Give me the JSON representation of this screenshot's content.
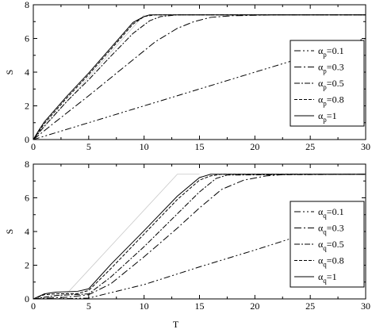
{
  "chart_data": [
    {
      "type": "line",
      "xlabel": "",
      "ylabel": "S",
      "xlim": [
        0,
        30
      ],
      "ylim": [
        0,
        8
      ],
      "xticks": [
        "0",
        "5",
        "10",
        "15",
        "20",
        "25",
        "30"
      ],
      "yticks": [
        "0",
        "2",
        "4",
        "6",
        "8"
      ],
      "grid": false,
      "legend_position": "right",
      "series": [
        {
          "name": "p=0.1",
          "symbol": "α",
          "sub": "p",
          "val": "=0.1",
          "dash": "8,3,2,3,2,3",
          "x": [
            0,
            5,
            10,
            15,
            20,
            25,
            30
          ],
          "y": [
            0,
            1.0,
            2.0,
            3.0,
            4.0,
            5.0,
            6.0
          ]
        },
        {
          "name": "p=0.3",
          "symbol": "α",
          "sub": "p",
          "val": "=0.3",
          "dash": "9,3,2,3",
          "x": [
            0,
            2,
            5,
            8,
            11,
            13,
            14.5,
            16,
            18,
            22,
            30
          ],
          "y": [
            0,
            1.05,
            2.6,
            4.2,
            5.8,
            6.6,
            7.0,
            7.25,
            7.35,
            7.4,
            7.4
          ]
        },
        {
          "name": "p=0.5",
          "symbol": "α",
          "sub": "p",
          "val": "=0.5",
          "dash": "7,2,2,2",
          "x": [
            0,
            1,
            3,
            5,
            7,
            9,
            10.5,
            11.5,
            13,
            30
          ],
          "y": [
            0,
            0.8,
            2.25,
            3.55,
            4.95,
            6.3,
            7.05,
            7.3,
            7.4,
            7.4
          ]
        },
        {
          "name": "p=0.8",
          "symbol": "α",
          "sub": "p",
          "val": "=0.8",
          "dash": "4,2",
          "x": [
            0,
            1,
            3,
            5,
            7,
            9,
            10,
            11,
            30
          ],
          "y": [
            0,
            0.95,
            2.45,
            3.85,
            5.35,
            6.85,
            7.3,
            7.4,
            7.4
          ]
        },
        {
          "name": "p=1",
          "symbol": "α",
          "sub": "p",
          "val": "=1",
          "dash": "",
          "x": [
            0,
            0.5,
            1,
            3,
            5,
            7,
            9,
            10,
            10.5,
            30
          ],
          "y": [
            0,
            0.55,
            1.05,
            2.55,
            3.95,
            5.45,
            6.95,
            7.3,
            7.4,
            7.4
          ]
        }
      ],
      "reference": {
        "x": [
          0,
          10
        ],
        "y": [
          0,
          7.4
        ]
      }
    },
    {
      "type": "line",
      "xlabel": "T",
      "ylabel": "S",
      "xlim": [
        0,
        30
      ],
      "ylim": [
        0,
        8
      ],
      "xticks": [
        "0",
        "5",
        "10",
        "15",
        "20",
        "25",
        "30"
      ],
      "yticks": [
        "0",
        "2",
        "4",
        "6",
        "8"
      ],
      "grid": false,
      "legend_position": "right",
      "series": [
        {
          "name": "q=0.1",
          "symbol": "α",
          "sub": "q",
          "val": "=0.1",
          "dash": "8,3,2,3,2,3",
          "x": [
            0,
            3,
            5,
            10,
            15,
            20,
            25,
            30
          ],
          "y": [
            0,
            0.02,
            0.05,
            0.85,
            1.9,
            2.9,
            3.95,
            5.0
          ]
        },
        {
          "name": "q=0.3",
          "symbol": "α",
          "sub": "q",
          "val": "=0.3",
          "dash": "9,3,2,3",
          "x": [
            0,
            3,
            5,
            7,
            10,
            13,
            15,
            17,
            19,
            21,
            23,
            30
          ],
          "y": [
            0,
            0.1,
            0.25,
            0.9,
            2.5,
            4.2,
            5.4,
            6.5,
            7.05,
            7.3,
            7.4,
            7.4
          ]
        },
        {
          "name": "q=0.5",
          "symbol": "α",
          "sub": "q",
          "val": "=0.5",
          "dash": "7,2,2,2",
          "x": [
            0,
            2,
            5,
            7,
            10,
            13,
            15,
            16.5,
            17.5,
            30
          ],
          "y": [
            0,
            0.2,
            0.3,
            1.3,
            3.1,
            5.05,
            6.35,
            7.15,
            7.35,
            7.4
          ]
        },
        {
          "name": "q=0.8",
          "symbol": "α",
          "sub": "q",
          "val": "=0.8",
          "dash": "4,2",
          "x": [
            0,
            1,
            2,
            4,
            5,
            7,
            10,
            13,
            15,
            16,
            17,
            30
          ],
          "y": [
            0,
            0.25,
            0.3,
            0.32,
            0.5,
            1.8,
            3.85,
            5.9,
            7.05,
            7.3,
            7.4,
            7.4
          ]
        },
        {
          "name": "q=1",
          "symbol": "α",
          "sub": "q",
          "val": "=1",
          "dash": "",
          "x": [
            0,
            1,
            2,
            4,
            5,
            7,
            10,
            13,
            15,
            16,
            30
          ],
          "y": [
            0,
            0.3,
            0.4,
            0.45,
            0.6,
            2.05,
            4.05,
            6.1,
            7.2,
            7.4,
            7.4
          ]
        }
      ],
      "reference": {
        "x": [
          0,
          2,
          3,
          13,
          15
        ],
        "y": [
          0,
          0.15,
          0.3,
          7.4,
          7.4
        ]
      }
    }
  ]
}
